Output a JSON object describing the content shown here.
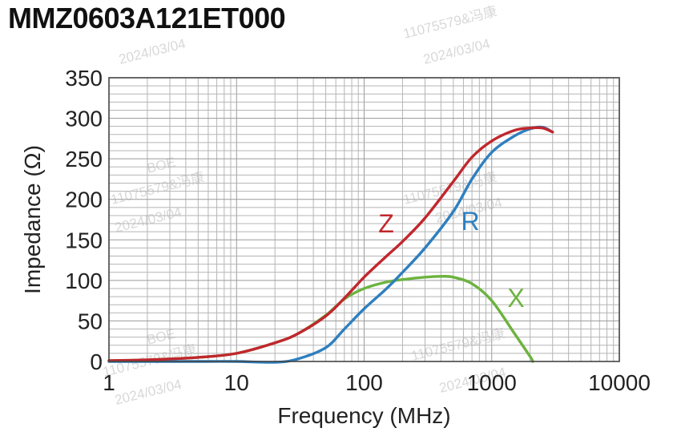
{
  "chart_data": {
    "type": "line",
    "title": "MMZ0603A121ET000",
    "xlabel": "Frequency (MHz)",
    "ylabel": "Impedance (Ω)",
    "x_scale": "log",
    "xlim": [
      1,
      10000
    ],
    "ylim": [
      0,
      350
    ],
    "x_ticks": [
      1,
      10,
      100,
      1000,
      10000
    ],
    "x_tick_labels": [
      "1",
      "10",
      "100",
      "1000",
      "10000"
    ],
    "y_ticks": [
      0,
      50,
      100,
      150,
      200,
      250,
      300,
      350
    ],
    "y_tick_labels": [
      "0",
      "50",
      "100",
      "150",
      "200",
      "250",
      "300",
      "350"
    ],
    "grid": true,
    "legend": "inline labels",
    "series": [
      {
        "name": "Z",
        "color": "#c0272d",
        "x": [
          1,
          2,
          5,
          10,
          20,
          30,
          50,
          70,
          100,
          150,
          200,
          300,
          500,
          700,
          1000,
          1500,
          2000,
          2500,
          3000
        ],
        "y": [
          1,
          2,
          5,
          10,
          23,
          34,
          56,
          78,
          104,
          130,
          148,
          177,
          222,
          252,
          272,
          285,
          288,
          288,
          283
        ]
      },
      {
        "name": "R",
        "color": "#2e7fbf",
        "x": [
          1,
          5,
          10,
          20,
          30,
          50,
          70,
          100,
          150,
          200,
          300,
          500,
          700,
          1000,
          1500,
          2000,
          2500,
          3000
        ],
        "y": [
          0,
          0,
          0,
          -1,
          3,
          17,
          40,
          65,
          90,
          110,
          140,
          185,
          225,
          258,
          278,
          287,
          289,
          283
        ]
      },
      {
        "name": "X",
        "color": "#6cb33f",
        "x": [
          1,
          2,
          5,
          10,
          20,
          30,
          50,
          70,
          100,
          150,
          200,
          300,
          400,
          500,
          700,
          1000,
          1500,
          2000,
          2100
        ],
        "y": [
          1,
          2,
          5,
          10,
          23,
          34,
          57,
          77,
          90,
          98,
          101,
          104,
          105,
          104,
          96,
          75,
          35,
          6,
          0
        ]
      }
    ]
  },
  "watermarks": [
    "11075579&冯康",
    "2024/03/04",
    "BOE"
  ]
}
